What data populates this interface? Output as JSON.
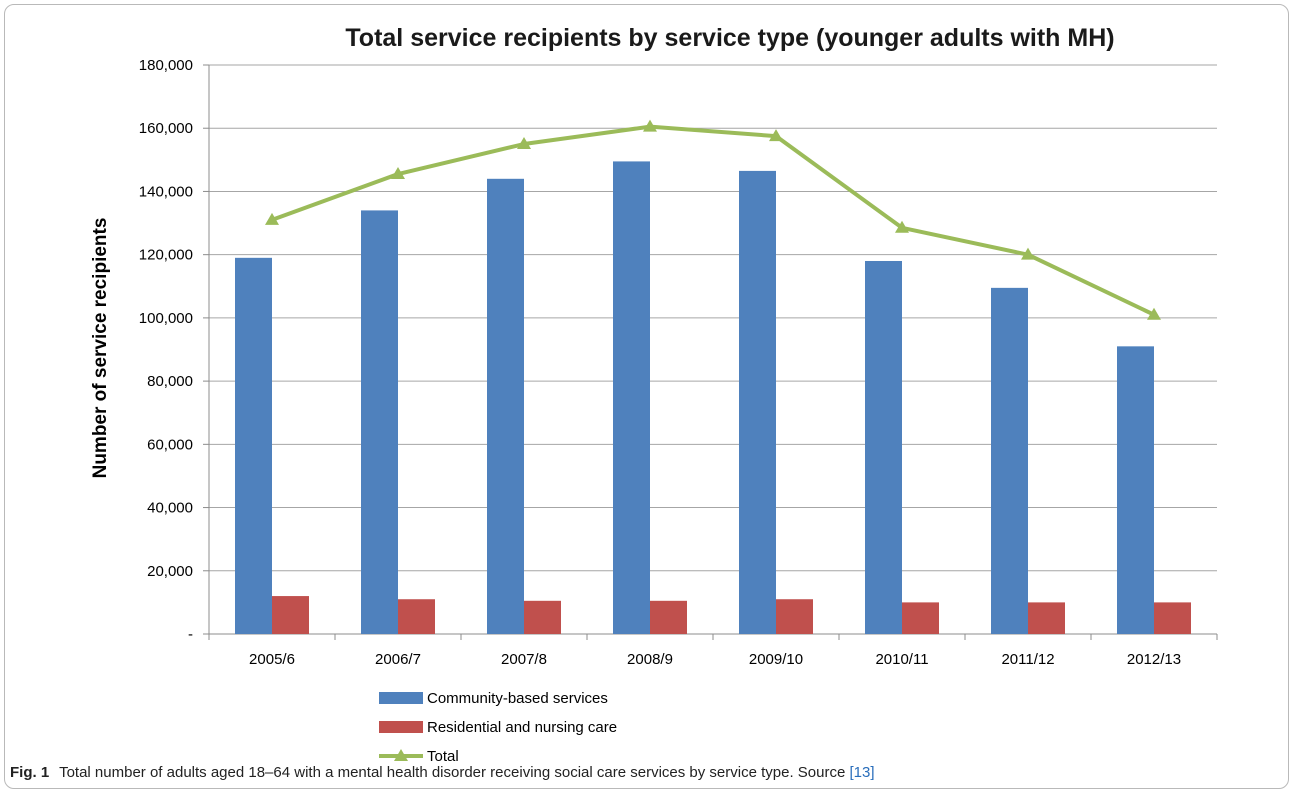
{
  "chart_data": {
    "type": "bar",
    "title": "Total service recipients by service type (younger adults with MH)",
    "ylabel": "Number of service recipients",
    "xlabel": "",
    "ylim": [
      0,
      180000
    ],
    "ytick_values": [
      0,
      20000,
      40000,
      60000,
      80000,
      100000,
      120000,
      140000,
      160000,
      180000
    ],
    "ytick_labels": [
      "-",
      "20,000",
      "40,000",
      "60,000",
      "80,000",
      "100,000",
      "120,000",
      "140,000",
      "160,000",
      "180,000"
    ],
    "grid": true,
    "legend_position": "bottom",
    "categories": [
      "2005/6",
      "2006/7",
      "2007/8",
      "2008/9",
      "2009/10",
      "2010/11",
      "2011/12",
      "2012/13"
    ],
    "series": [
      {
        "name": "Community-based services",
        "kind": "bar",
        "color": "#4f81bd",
        "values": [
          119000,
          134000,
          144000,
          149500,
          146500,
          118000,
          109500,
          91000
        ]
      },
      {
        "name": "Residential and nursing care",
        "kind": "bar",
        "color": "#c0504d",
        "values": [
          12000,
          11000,
          10500,
          10500,
          11000,
          10000,
          10000,
          10000
        ]
      },
      {
        "name": "Total",
        "kind": "line",
        "marker": "triangle",
        "color": "#9bbb59",
        "values": [
          131000,
          145500,
          155000,
          160500,
          157500,
          128500,
          120000,
          101000
        ]
      }
    ]
  },
  "caption": {
    "label": "Fig. 1",
    "text": "Total number of adults aged 18–64 with a mental health disorder receiving social care services by service type. Source",
    "ref": "[13]"
  }
}
